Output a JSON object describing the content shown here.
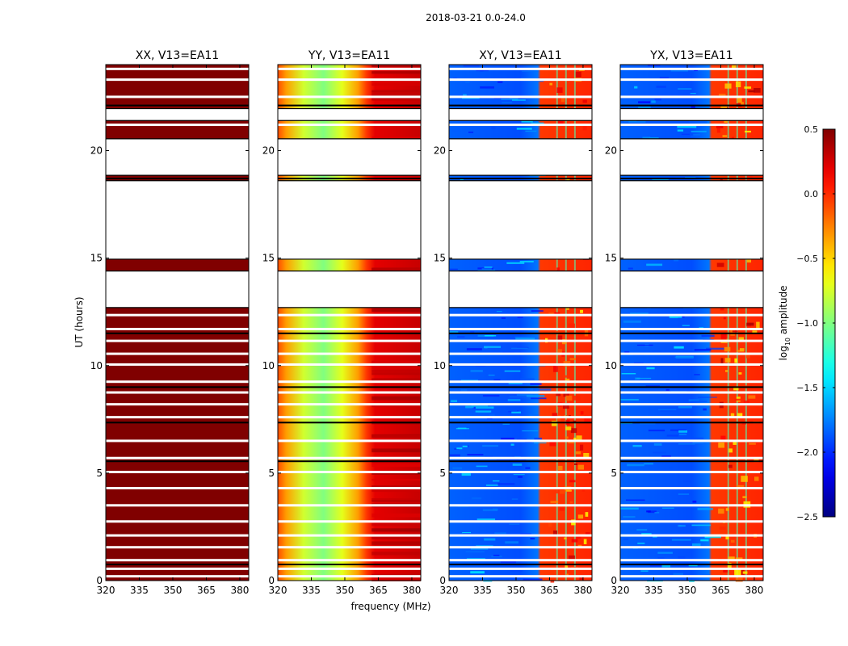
{
  "figure_title": "2018-03-21 0.0-24.0",
  "chart_data": {
    "type": "heatmap",
    "title": "2018-03-21 0.0-24.0",
    "xlabel": "frequency (MHz)",
    "ylabel": "UT (hours)",
    "xlim": [
      320,
      384
    ],
    "ylim": [
      0,
      24
    ],
    "xticks": [
      320,
      335,
      350,
      365,
      380
    ],
    "yticks": [
      0,
      5,
      10,
      15,
      20
    ],
    "colorbar": {
      "label": "log10 amplitude",
      "label_prefix": "log",
      "label_sub": "10",
      "label_suffix": " amplitude",
      "range": [
        -2.5,
        0.5
      ],
      "ticks": [
        0.5,
        0.0,
        -0.5,
        -1.0,
        -1.5,
        -2.0,
        -2.5
      ],
      "tick_labels": [
        "0.5",
        "0.0",
        "−0.5",
        "−1.0",
        "−1.5",
        "−2.0",
        "−2.5"
      ],
      "colormap": "jet"
    },
    "data_gaps_hours": [
      [
        12.7,
        14.4
      ],
      [
        14.95,
        18.6
      ],
      [
        18.85,
        20.55
      ],
      [
        21.4,
        21.95
      ]
    ],
    "panels": [
      {
        "name": "XX, V13=EA11",
        "pattern": "saturated",
        "typical_log10_amplitude": 0.5
      },
      {
        "name": "YY, V13=EA11",
        "pattern": "bandpass",
        "typical_log10_amplitude_low_freq": -0.3,
        "typical_log10_amplitude_mid_freq": -0.9,
        "typical_log10_amplitude_high_freq": 0.3
      },
      {
        "name": "XY, V13=EA11",
        "pattern": "crosspol",
        "typical_log10_amplitude_low_freq": -2.1,
        "typical_log10_amplitude_high_freq": 0.0
      },
      {
        "name": "YX, V13=EA11",
        "pattern": "crosspol",
        "typical_log10_amplitude_low_freq": -2.1,
        "typical_log10_amplitude_high_freq": 0.0
      }
    ],
    "high_freq_band_MHz": [
      362,
      382
    ]
  }
}
